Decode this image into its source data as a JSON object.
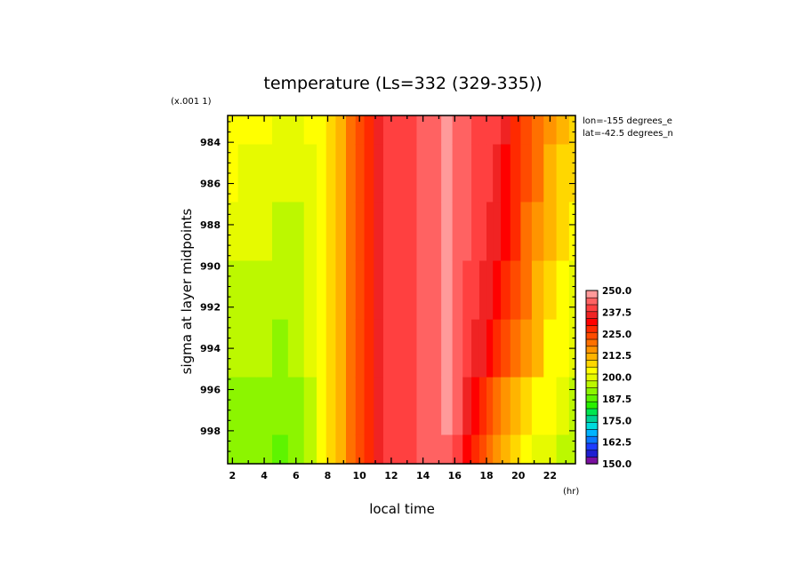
{
  "chart_data": {
    "type": "heatmap",
    "title": "temperature (Ls=332 (329-335))",
    "xlabel": "local time",
    "x_unit": "(hr)",
    "ylabel": "sigma at layer midpoints",
    "y_scale_note": "(x.001 1)",
    "info_lines": [
      "lon=-155 degrees_e",
      "lat=-42.5 degrees_n"
    ],
    "x_ticks": [
      "2",
      "4",
      "6",
      "8",
      "10",
      "12",
      "14",
      "16",
      "18",
      "20",
      "22"
    ],
    "y_ticks": [
      "984",
      "986",
      "988",
      "990",
      "992",
      "994",
      "996",
      "998"
    ],
    "xlim": [
      1.7,
      23.6
    ],
    "ylim": [
      999.6,
      982.7
    ],
    "color_levels": [
      "150.0",
      "162.5",
      "175.0",
      "187.5",
      "200.0",
      "212.5",
      "225.0",
      "237.5",
      "250.0"
    ],
    "colorbar_colors": [
      "#7a0fa0",
      "#1e1ed2",
      "#1e3cff",
      "#0a78ff",
      "#00b4ff",
      "#00dcdc",
      "#00d296",
      "#00e650",
      "#28f000",
      "#5ef400",
      "#8cf500",
      "#bcf800",
      "#e6fa00",
      "#ffff00",
      "#ffd700",
      "#ffb400",
      "#ff9400",
      "#ff7000",
      "#ff4b00",
      "#ff2a00",
      "#ff0000",
      "#f02323",
      "#ff4040",
      "#ff6262",
      "#ff9a9a"
    ],
    "columns": [
      {
        "hour": 1.7,
        "values": [
          204,
          202,
          199,
          197,
          194,
          192,
          190
        ]
      },
      {
        "hour": 3.0,
        "values": [
          203,
          201,
          199,
          196,
          194,
          192,
          190
        ]
      },
      {
        "hour": 4.0,
        "values": [
          202,
          200,
          198,
          196,
          194,
          192,
          190
        ]
      },
      {
        "hour": 5.0,
        "values": [
          200,
          199,
          197,
          195,
          193,
          191,
          189
        ]
      },
      {
        "hour": 6.0,
        "values": [
          200,
          198,
          197,
          196,
          194,
          192,
          190
        ]
      },
      {
        "hour": 7.0,
        "values": [
          202,
          201,
          200,
          199,
          198,
          197,
          196
        ]
      },
      {
        "hour": 7.6,
        "values": [
          205,
          205,
          204,
          204,
          203,
          203,
          202
        ]
      },
      {
        "hour": 8.2,
        "values": [
          209,
          209,
          209,
          208,
          208,
          208,
          208
        ]
      },
      {
        "hour": 8.8,
        "values": [
          213,
          213,
          213,
          213,
          213,
          213,
          213
        ]
      },
      {
        "hour": 9.5,
        "values": [
          218,
          218,
          218,
          218,
          218,
          218,
          218
        ]
      },
      {
        "hour": 10.0,
        "values": [
          224,
          224,
          224,
          224,
          224,
          224,
          224
        ]
      },
      {
        "hour": 10.6,
        "values": [
          229,
          229,
          229,
          229,
          229,
          229,
          229
        ]
      },
      {
        "hour": 11.2,
        "values": [
          235,
          235,
          235,
          235,
          235,
          235,
          235
        ]
      },
      {
        "hour": 11.8,
        "values": [
          238,
          238,
          238,
          238,
          238,
          238,
          238
        ]
      },
      {
        "hour": 12.5,
        "values": [
          240,
          240,
          240,
          240,
          240,
          240,
          240
        ]
      },
      {
        "hour": 13.2,
        "values": [
          241,
          241,
          241,
          241,
          241,
          241,
          241
        ]
      },
      {
        "hour": 14.0,
        "values": [
          242,
          242,
          242,
          242,
          242,
          242,
          242
        ]
      },
      {
        "hour": 14.8,
        "values": [
          244,
          244,
          244,
          244,
          244,
          244,
          244
        ]
      },
      {
        "hour": 15.5,
        "values": [
          247,
          247,
          247,
          247,
          247,
          246,
          245
        ]
      },
      {
        "hour": 16.2,
        "values": [
          245,
          245,
          245,
          245,
          244,
          242,
          240
        ]
      },
      {
        "hour": 16.8,
        "values": [
          243,
          243,
          242,
          241,
          240,
          237,
          233
        ]
      },
      {
        "hour": 17.3,
        "values": [
          241,
          241,
          240,
          239,
          237,
          232,
          227
        ]
      },
      {
        "hour": 17.8,
        "values": [
          240,
          239,
          238,
          237,
          234,
          228,
          222
        ]
      },
      {
        "hour": 18.2,
        "values": [
          239,
          238,
          237,
          235,
          231,
          225,
          218
        ]
      },
      {
        "hour": 18.6,
        "values": [
          238,
          237,
          235,
          232,
          228,
          221,
          214
        ]
      },
      {
        "hour": 19.2,
        "values": [
          234,
          233,
          231,
          228,
          224,
          217,
          210
        ]
      },
      {
        "hour": 19.8,
        "values": [
          229,
          228,
          226,
          223,
          219,
          213,
          207
        ]
      },
      {
        "hour": 20.5,
        "values": [
          224,
          223,
          221,
          218,
          215,
          209,
          204
        ]
      },
      {
        "hour": 21.2,
        "values": [
          219,
          218,
          216,
          213,
          210,
          205,
          201
        ]
      },
      {
        "hour": 22.0,
        "values": [
          215,
          213,
          211,
          208,
          205,
          202,
          199
        ]
      },
      {
        "hour": 22.8,
        "values": [
          211,
          209,
          207,
          204,
          202,
          199,
          197
        ]
      },
      {
        "hour": 23.6,
        "values": [
          208,
          206,
          204,
          201,
          199,
          197,
          195
        ]
      }
    ],
    "row_sigma": [
      982.7,
      985.5,
      988.3,
      991.2,
      994.0,
      996.8,
      999.6
    ]
  }
}
